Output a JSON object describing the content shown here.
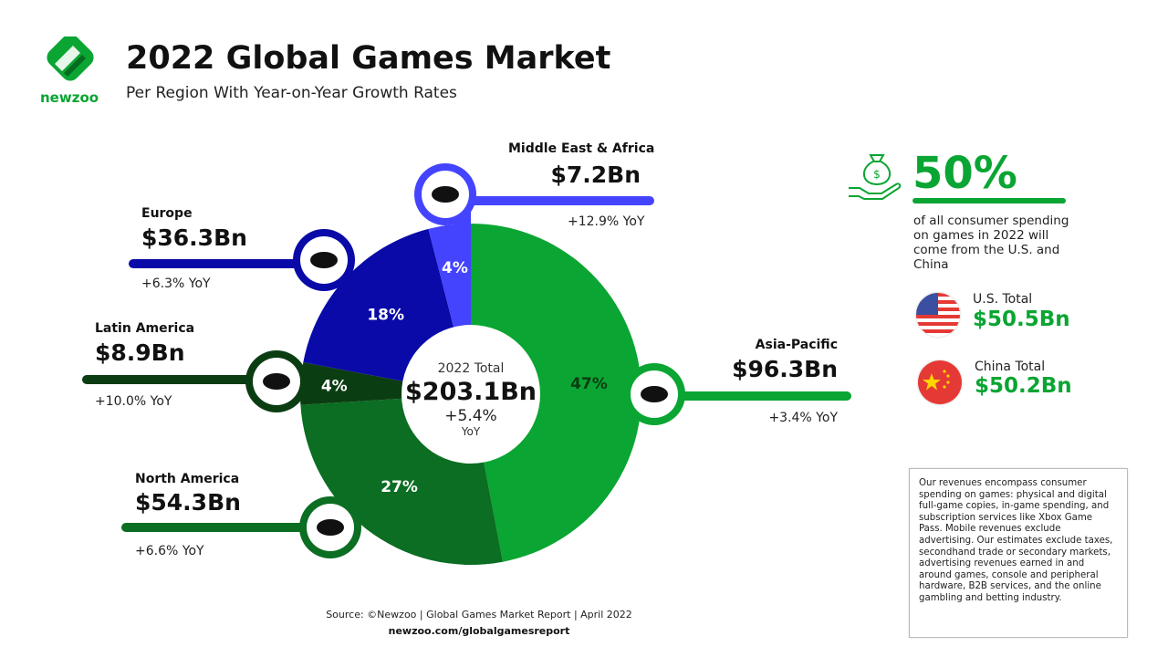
{
  "header": {
    "title": "2022 Global Games Market",
    "subtitle": "Per Region With Year-on-Year Growth Rates",
    "logo_text": "newzoo"
  },
  "chart_data": {
    "type": "pie",
    "title": "2022 Global Games Market",
    "subtitle": "Per Region With Year-on-Year Growth Rates",
    "center": {
      "label": "2022 Total",
      "value": "$203.1Bn",
      "growth": "+5.4%",
      "growth_unit": "YoY"
    },
    "series": [
      {
        "name": "Asia-Pacific",
        "value_label": "$96.3Bn",
        "value": 96.3,
        "share": 47,
        "share_label": "47%",
        "yoy": "+3.4% YoY",
        "color": "#0aa532"
      },
      {
        "name": "North America",
        "value_label": "$54.3Bn",
        "value": 54.3,
        "share": 27,
        "share_label": "27%",
        "yoy": "+6.6% YoY",
        "color": "#0b6e22"
      },
      {
        "name": "Latin America",
        "value_label": "$8.9Bn",
        "value": 8.9,
        "share": 4,
        "share_label": "4%",
        "yoy": "+10.0% YoY",
        "color": "#0b3d12"
      },
      {
        "name": "Europe",
        "value_label": "$36.3Bn",
        "value": 36.3,
        "share": 18,
        "share_label": "18%",
        "yoy": "+6.3% YoY",
        "color": "#0a0aa8"
      },
      {
        "name": "Middle East & Africa",
        "value_label": "$7.2Bn",
        "value": 7.2,
        "share": 4,
        "share_label": "4%",
        "yoy": "+12.9% YoY",
        "color": "#4444ff"
      }
    ]
  },
  "highlight": {
    "percent": "50%",
    "text": "of all consumer spending on games in 2022 will come from the U.S. and China",
    "icon": "money-bag-hand-icon",
    "us": {
      "label": "U.S. Total",
      "value": "$50.5Bn",
      "icon": "us-flag-icon"
    },
    "china": {
      "label": "China Total",
      "value": "$50.2Bn",
      "icon": "china-flag-icon"
    }
  },
  "note": "Our revenues encompass consumer spending on games: physical and digital full-game copies, in-game spending, and subscription services like Xbox Game Pass. Mobile revenues exclude advertising. Our estimates exclude taxes, secondhand trade or secondary markets, advertising revenues earned in and around games, console and peripheral hardware, B2B services, and the online gambling and betting industry.",
  "footer": {
    "source": "Source: ©Newzoo | Global Games Market Report | April 2022",
    "url": "newzoo.com/globalgamesreport"
  },
  "colors": {
    "brand_green": "#0aa532"
  }
}
